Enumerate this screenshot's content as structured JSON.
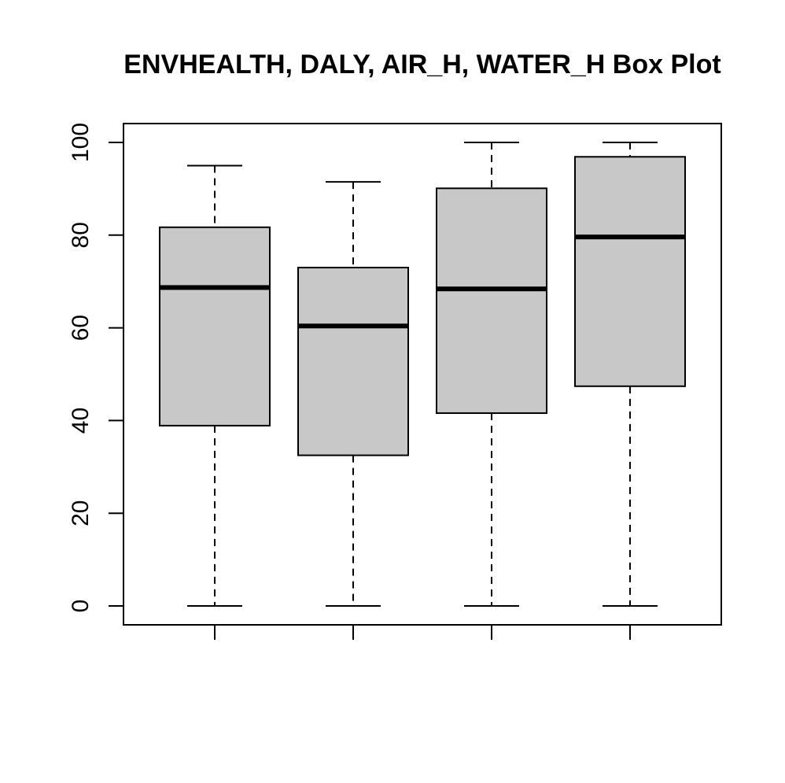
{
  "chart_data": {
    "type": "box",
    "title": "ENVHEALTH, DALY, AIR_H, WATER_H Box Plot",
    "xlabel": "",
    "ylabel": "",
    "ylim": [
      -4,
      104
    ],
    "yticks": [
      0,
      20,
      40,
      60,
      80,
      100
    ],
    "grid": false,
    "legend": "none",
    "colors": {
      "box_fill": "#c8c8c8",
      "stroke": "#000000",
      "background": "#ffffff"
    },
    "boxes": [
      {
        "min": 0,
        "q1": 38.9,
        "median": 68.7,
        "q3": 81.7,
        "max": 95.0
      },
      {
        "min": 0,
        "q1": 32.5,
        "median": 60.4,
        "q3": 73.0,
        "max": 91.5
      },
      {
        "min": 0,
        "q1": 41.6,
        "median": 68.4,
        "q3": 90.1,
        "max": 100.0
      },
      {
        "min": 0,
        "q1": 47.4,
        "median": 79.6,
        "q3": 96.9,
        "max": 100.0
      }
    ]
  }
}
